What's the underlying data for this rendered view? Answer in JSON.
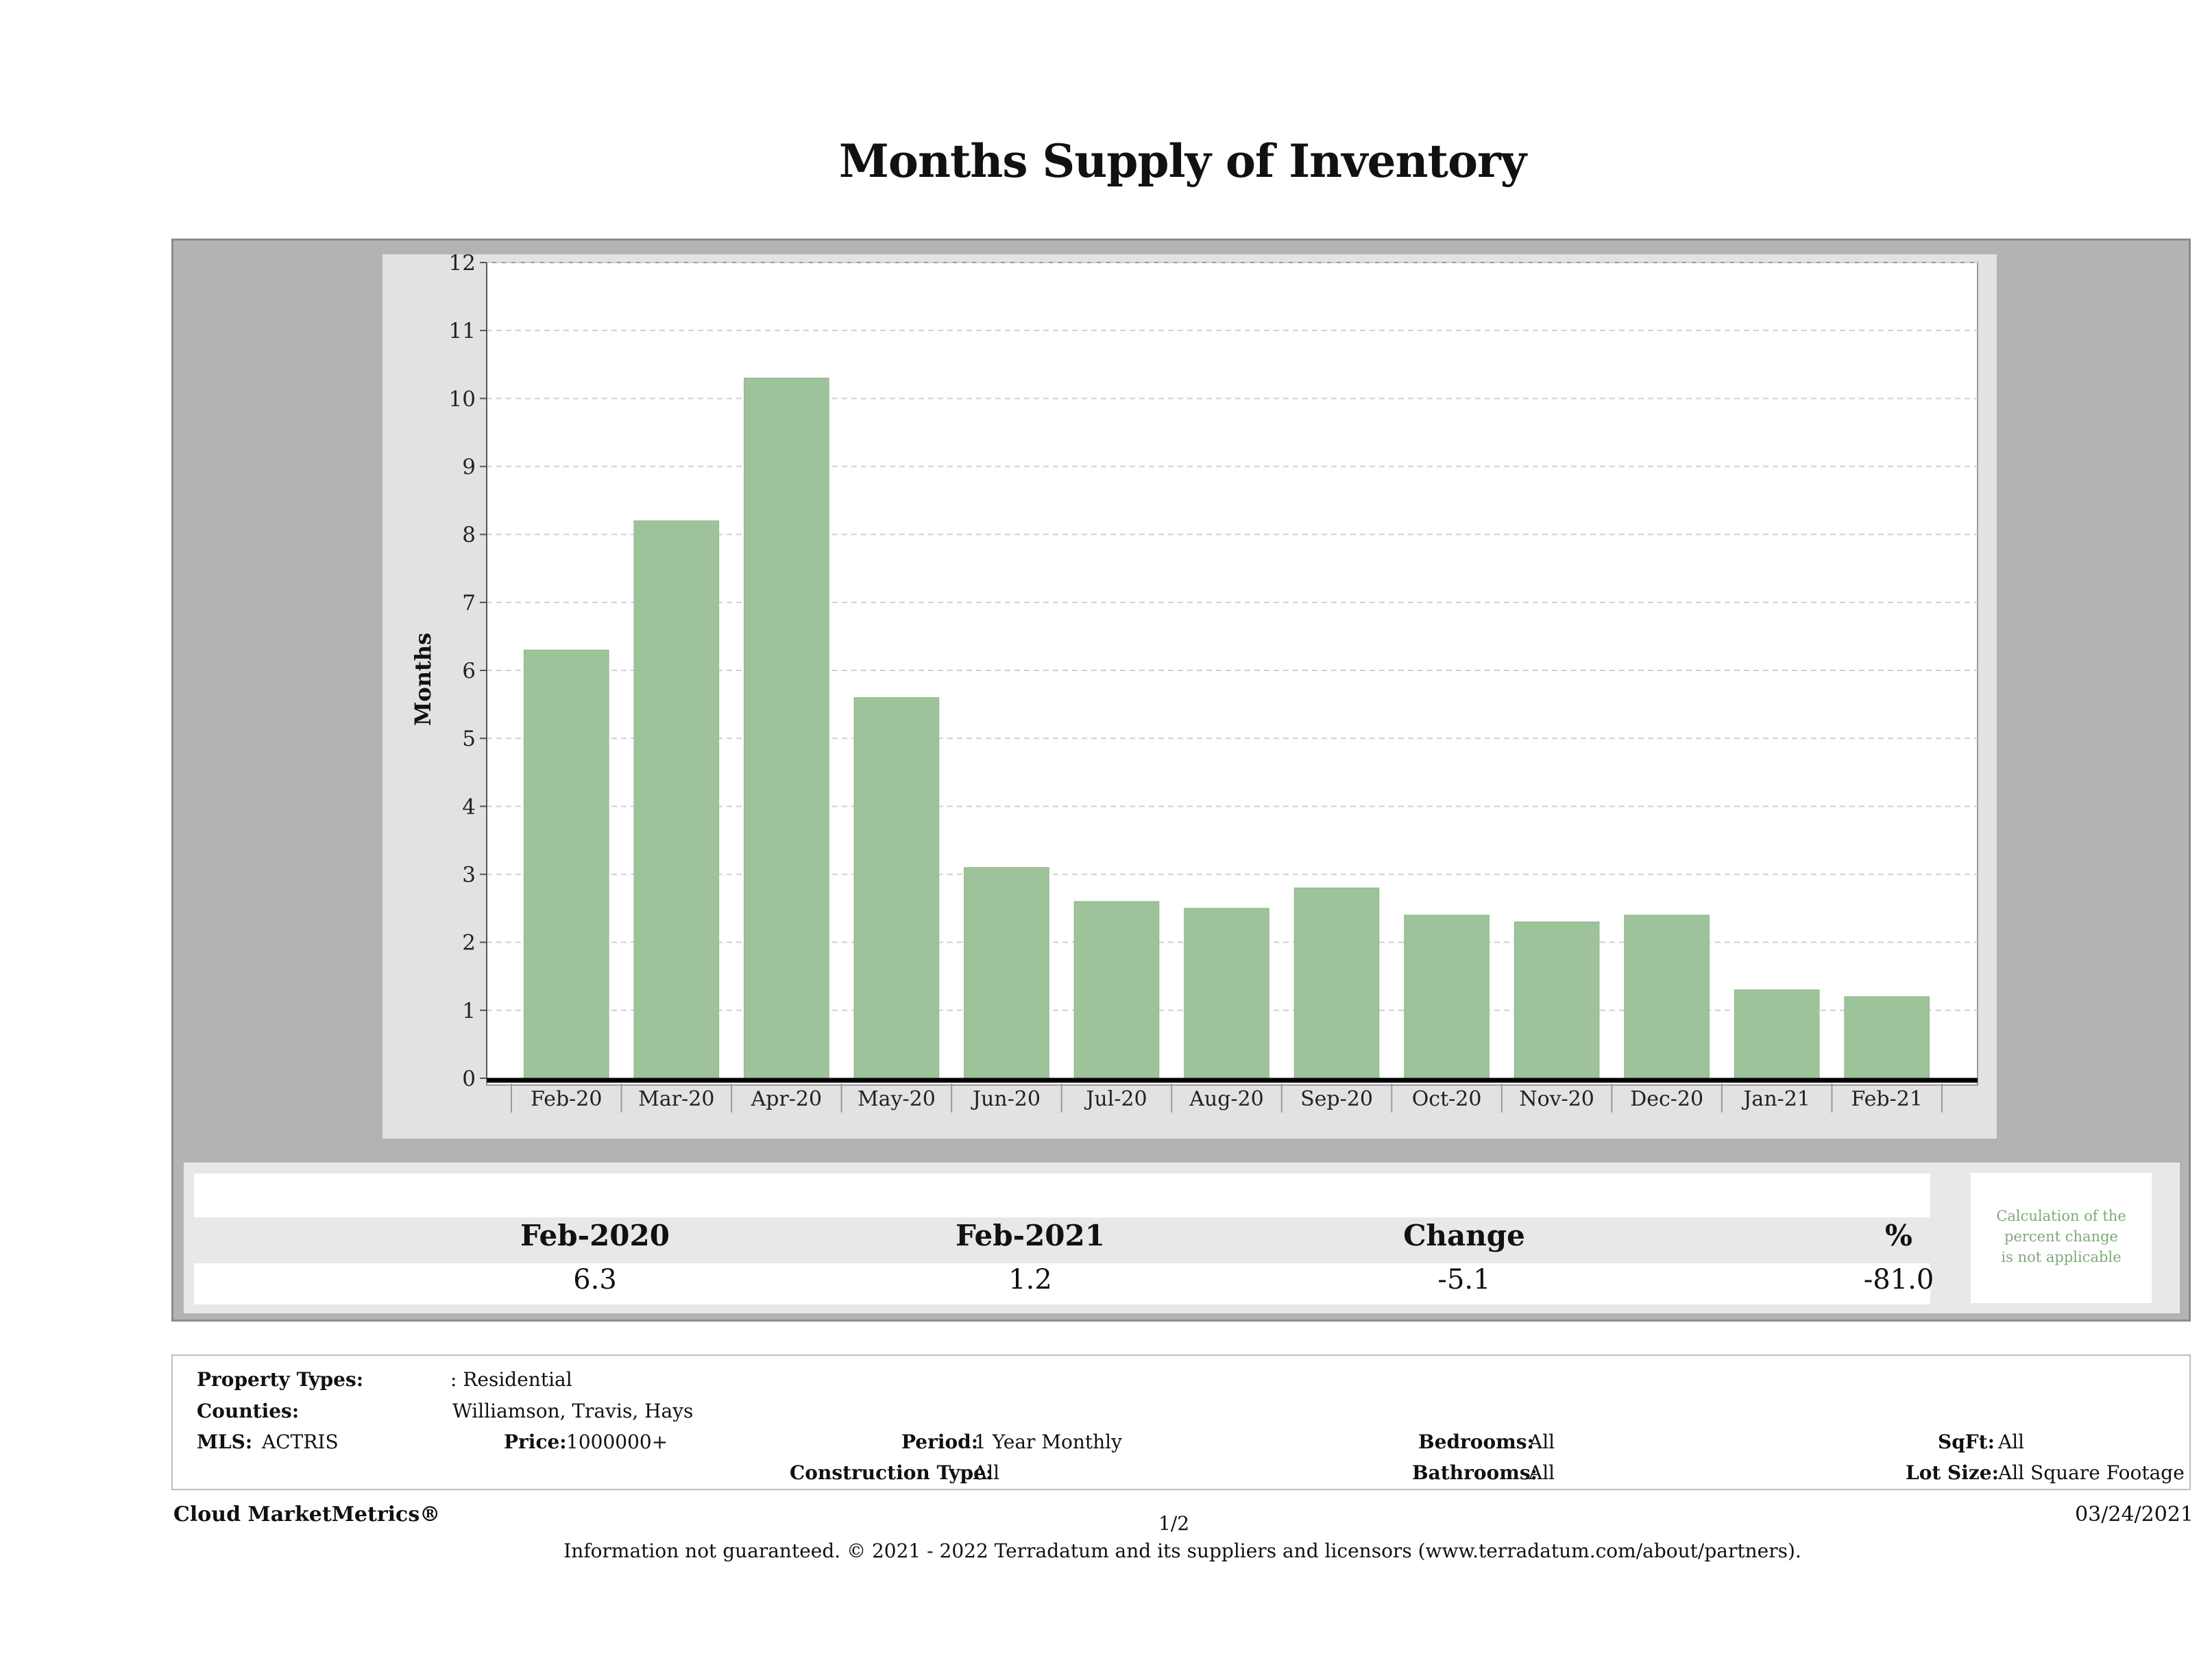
{
  "page": {
    "title": "Months Supply of Inventory"
  },
  "chart_data": {
    "type": "bar",
    "title": "Months Supply of Inventory",
    "xlabel": "",
    "ylabel": "Months",
    "ylim": [
      0,
      12
    ],
    "yticks": [
      "0",
      "1",
      "2",
      "3",
      "4",
      "5",
      "6",
      "7",
      "8",
      "9",
      "10",
      "11",
      "12"
    ],
    "grid": true,
    "bar_color": "#9ec29a",
    "categories": [
      "Feb-20",
      "Mar-20",
      "Apr-20",
      "May-20",
      "Jun-20",
      "Jul-20",
      "Aug-20",
      "Sep-20",
      "Oct-20",
      "Nov-20",
      "Dec-20",
      "Jan-21",
      "Feb-21"
    ],
    "values": [
      6.3,
      8.2,
      10.3,
      5.6,
      3.1,
      2.6,
      2.5,
      2.8,
      2.4,
      2.3,
      2.4,
      1.3,
      1.2
    ]
  },
  "stats": {
    "col1_head": "Feb-2020",
    "col2_head": "Feb-2021",
    "col3_head": "Change",
    "col4_head": "%",
    "col1_val": "6.3",
    "col2_val": "1.2",
    "col3_val": "-5.1",
    "col4_val": "-81.0",
    "note_line1": "Calculation of the",
    "note_line2": "percent change",
    "note_line3": "is not applicable"
  },
  "info": {
    "property_types_label": "Property Types:",
    "property_types_value": ": Residential",
    "counties_label": "Counties:",
    "counties_value": "Williamson, Travis, Hays",
    "mls_label": "MLS:",
    "mls_value": "ACTRIS",
    "price_label": "Price:",
    "price_value": "1000000+",
    "period_label": "Period:",
    "period_value": "1 Year Monthly",
    "construction_label": "Construction Type:",
    "construction_value": "All",
    "bedrooms_label": "Bedrooms:",
    "bedrooms_value": "All",
    "bathrooms_label": "Bathrooms:",
    "bathrooms_value": "All",
    "sqft_label": "SqFt:",
    "sqft_value": "All",
    "lotsize_label": "Lot Size:",
    "lotsize_value": "All Square Footage"
  },
  "footer": {
    "brand": "Cloud MarketMetrics®",
    "page": "1/2",
    "date": "03/24/2021",
    "disclaimer": "Information not guaranteed. © 2021 - 2022 Terradatum and its suppliers and licensors (www.terradatum.com/about/partners)."
  }
}
